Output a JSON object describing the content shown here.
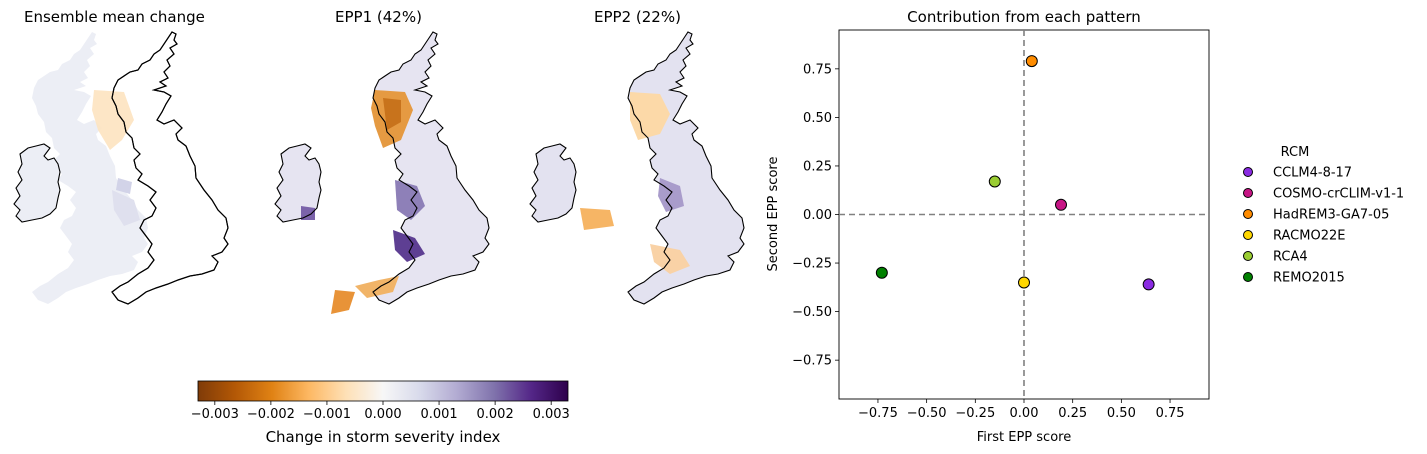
{
  "panels": {
    "map1_title": "Ensemble mean change",
    "map2_title": "EPP1 (42%)",
    "map3_title": "EPP2 (22%)"
  },
  "colorbar": {
    "label": "Change in storm severity index",
    "ticks": [
      "−0.003",
      "−0.002",
      "−0.001",
      "0.000",
      "0.001",
      "0.002",
      "0.003"
    ],
    "range": [
      -0.0033,
      0.0033
    ],
    "colors": [
      "#7f3b08",
      "#b35806",
      "#e08214",
      "#fdb863",
      "#fee0b6",
      "#f7f7f7",
      "#d8daeb",
      "#b2abd2",
      "#8073ac",
      "#542788",
      "#2d004b"
    ]
  },
  "chart_data": [
    {
      "type": "scatter",
      "title": "Contribution from each pattern",
      "xlabel": "First EPP score",
      "ylabel": "Second EPP score",
      "xlim": [
        -0.95,
        0.95
      ],
      "ylim": [
        -0.95,
        0.95
      ],
      "xticks": [
        "−0.75",
        "−0.50",
        "−0.25",
        "0.00",
        "0.25",
        "0.50",
        "0.75"
      ],
      "yticks": [
        "−0.75",
        "−0.50",
        "−0.25",
        "0.00",
        "0.25",
        "0.50",
        "0.75"
      ],
      "xtick_values": [
        -0.75,
        -0.5,
        -0.25,
        0,
        0.25,
        0.5,
        0.75
      ],
      "ytick_values": [
        -0.75,
        -0.5,
        -0.25,
        0,
        0.25,
        0.5,
        0.75
      ],
      "reference_lines": {
        "x": 0,
        "y": 0,
        "style": "dashed",
        "color": "#808080"
      },
      "legend_title": "RCM",
      "legend_position": "right",
      "grid": false,
      "series": [
        {
          "name": "CCLM4-8-17",
          "color": "#8a2be2",
          "x": 0.64,
          "y": -0.36
        },
        {
          "name": "COSMO-crCLIM-v1-1",
          "color": "#c71585",
          "x": 0.19,
          "y": 0.05
        },
        {
          "name": "HadREM3-GA7-05",
          "color": "#ff8c00",
          "x": 0.04,
          "y": 0.79
        },
        {
          "name": "RACMO22E",
          "color": "#ffd700",
          "x": 0.0,
          "y": -0.35
        },
        {
          "name": "RCA4",
          "color": "#9acd32",
          "x": -0.15,
          "y": 0.17
        },
        {
          "name": "REMO2015",
          "color": "#008000",
          "x": -0.73,
          "y": -0.3
        }
      ]
    }
  ]
}
